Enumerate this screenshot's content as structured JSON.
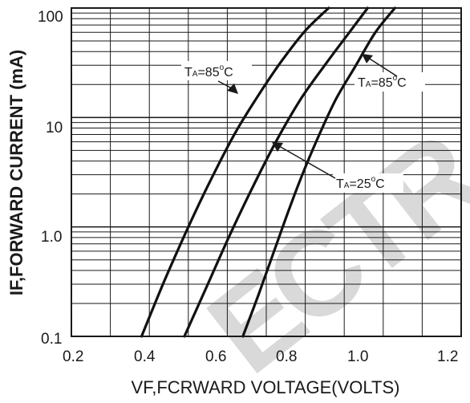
{
  "chart_data": {
    "type": "line",
    "xlabel": "VF,FCRWARD VOLTAGE(VOLTS)",
    "ylabel": "IF,FORWARD CURRENT (mA)",
    "xlim": [
      0.2,
      1.2
    ],
    "ylim": [
      0.1,
      100
    ],
    "yscale": "log",
    "grid": true,
    "x_ticks": [
      "0.2",
      "0.4",
      "0.6",
      "0.8",
      "1.0",
      "1.2"
    ],
    "y_ticks": [
      "0.1",
      "1.0",
      "10",
      "100"
    ],
    "series": [
      {
        "x": [
          0.38,
          0.44,
          0.5,
          0.56,
          0.62,
          0.68,
          0.74,
          0.8,
          0.86
        ],
        "y": [
          0.1,
          0.33,
          1.0,
          2.8,
          7.2,
          16,
          33,
          62,
          100
        ]
      },
      {
        "x": [
          0.49,
          0.55,
          0.61,
          0.67,
          0.73,
          0.79,
          0.85,
          0.91,
          0.96
        ],
        "y": [
          0.1,
          0.3,
          0.9,
          2.5,
          6.5,
          15,
          30,
          58,
          100
        ]
      },
      {
        "x": [
          0.64,
          0.68,
          0.72,
          0.76,
          0.8,
          0.84,
          0.88,
          0.93,
          0.98,
          1.03
        ],
        "y": [
          0.1,
          0.24,
          0.6,
          1.5,
          3.5,
          7.5,
          15,
          30,
          60,
          100
        ]
      }
    ],
    "annotations": [
      {
        "pre": "T",
        "sub": "A",
        "post": "=85",
        "sup": "o",
        "unit": "C"
      },
      {
        "pre": "T",
        "sub": "A",
        "post": "=85",
        "sup": "o",
        "unit": "C"
      },
      {
        "pre": "T",
        "sub": "A",
        "post": "=25",
        "sup": "o",
        "unit": "C"
      }
    ]
  },
  "watermark": {
    "text": "ECTR",
    "color": "#d9d9d9"
  }
}
